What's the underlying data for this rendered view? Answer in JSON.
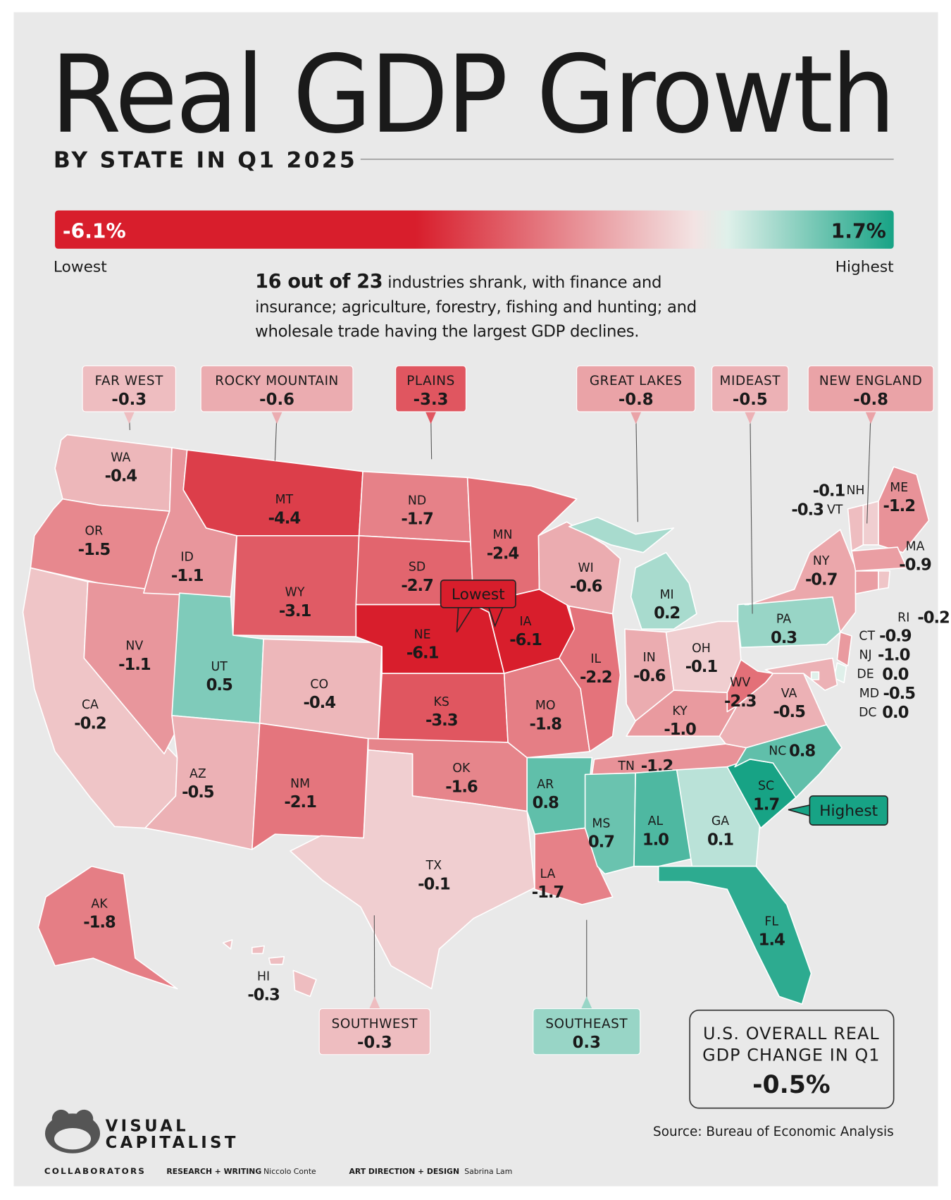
{
  "title": "Real GDP Growth",
  "subtitle": "BY STATE IN Q1 2025",
  "intro": {
    "bold": "16 out of 23",
    "text": "industries shrank, with finance and insurance; agriculture, forestry, fishing and hunting; and wholesale trade having the largest GDP declines."
  },
  "chart_data": {
    "type": "choropleth",
    "colors": [
      "#d81e2c",
      "#f3e3e3",
      "#dff0ea",
      "#17a385"
    ],
    "color_scale": {
      "ticks": [
        {
          "value": -6.1,
          "label": "-6.1%"
        },
        {
          "value": 1.7,
          "label": "1.7%"
        }
      ],
      "labels": [
        "Lowest",
        "Highest"
      ]
    },
    "categories": [
      "WA",
      "OR",
      "CA",
      "NV",
      "ID",
      "MT",
      "WY",
      "UT",
      "CO",
      "AZ",
      "NM",
      "ND",
      "SD",
      "NE",
      "KS",
      "OK",
      "TX",
      "MN",
      "IA",
      "MO",
      "AR",
      "LA",
      "WI",
      "IL",
      "MI",
      "IN",
      "OH",
      "KY",
      "TN",
      "MS",
      "AL",
      "GA",
      "FL",
      "SC",
      "NC",
      "VA",
      "WV",
      "PA",
      "NY",
      "NJ",
      "DE",
      "MD",
      "DC",
      "VT",
      "NH",
      "ME",
      "MA",
      "CT",
      "RI",
      "AK",
      "HI"
    ],
    "values": [
      -0.4,
      -1.5,
      -0.2,
      -1.1,
      -1.1,
      -4.4,
      -3.1,
      0.5,
      -0.4,
      -0.5,
      -2.1,
      -1.7,
      -2.7,
      -6.1,
      -3.3,
      -1.6,
      -0.1,
      -2.4,
      -6.1,
      -1.8,
      0.8,
      -1.7,
      -0.6,
      -2.2,
      0.2,
      -0.6,
      -0.1,
      -1.0,
      -1.2,
      0.7,
      1.0,
      0.1,
      1.4,
      1.7,
      0.8,
      -0.5,
      -2.3,
      0.3,
      -0.7,
      -1.0,
      0.0,
      -0.5,
      0.0,
      -0.3,
      -0.1,
      -1.2,
      -0.9,
      -0.9,
      -0.2,
      -1.8,
      -0.3
    ],
    "value_labels": [
      "-0.4",
      "-1.5",
      "-0.2",
      "-1.1",
      "-1.1",
      "-4.4",
      "-3.1",
      "0.5",
      "-0.4",
      "-0.5",
      "-2.1",
      "-1.7",
      "-2.7",
      "-6.1",
      "-3.3",
      "-1.6",
      "-0.1",
      "-2.4",
      "-6.1",
      "-1.8",
      "0.8",
      "-1.7",
      "-0.6",
      "-2.2",
      "0.2",
      "-0.6",
      "-0.1",
      "-1.0",
      "-1.2",
      "0.7",
      "1.0",
      "0.1",
      "1.4",
      "1.7",
      "0.8",
      "-0.5",
      "-2.3",
      "0.3",
      "-0.7",
      "-1.0",
      "0.0",
      "-0.5",
      "0.0",
      "-0.3",
      "-0.1",
      "-1.2",
      "-0.9",
      "-0.9",
      "-0.2",
      "-1.8",
      "-0.3"
    ],
    "regions": {
      "names": [
        "FAR WEST",
        "ROCKY MOUNTAIN",
        "PLAINS",
        "GREAT LAKES",
        "MIDEAST",
        "NEW ENGLAND",
        "SOUTHWEST",
        "SOUTHEAST"
      ],
      "values": [
        -0.3,
        -0.6,
        -3.3,
        -0.8,
        -0.5,
        -0.8,
        -0.3,
        0.3
      ]
    },
    "annotations": [
      "Lowest",
      "Highest"
    ]
  },
  "us_overall": {
    "label": [
      "U.S. OVERALL REAL",
      "GDP CHANGE IN Q1"
    ],
    "value": -0.5,
    "value_label": "-0.5%"
  },
  "source": "Source: Bureau of Economic Analysis",
  "brand": [
    "VISUAL",
    "CAPITALIST"
  ],
  "credits": [
    "COLLABORATORS",
    "RESEARCH + WRITING",
    "Niccolo Conte",
    "ART DIRECTION + DESIGN",
    "Sabrina Lam"
  ]
}
